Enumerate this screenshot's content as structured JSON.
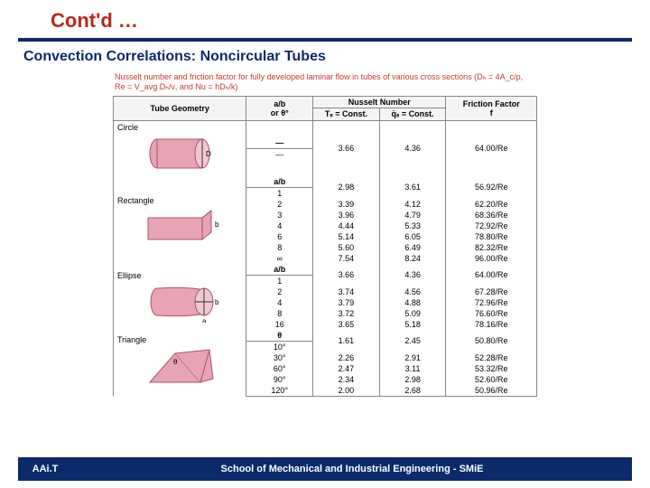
{
  "colors": {
    "title": "#b42a1e",
    "rule": "#0a2a6b",
    "subtitle": "#0a2a6b",
    "caption": "#c23a2e",
    "shape_fill": "#e8a4b4",
    "shape_stroke": "#a8536b",
    "footer_bg": "#0a2a6b"
  },
  "title": "Cont'd …",
  "subtitle": "Convection Correlations: Noncircular Tubes",
  "caption": "Nusselt number and friction factor for fully developed laminar flow in tubes of various cross sections (Dₕ = 4A_c/p, Re = V_avg Dₕ/ν, and Nu = hDₕ/k)",
  "headers": {
    "geom": "Tube Geometry",
    "ratio": "a/b\nor θ°",
    "nu_group": "Nusselt Number",
    "nu_ts": "Tₛ = Const.",
    "nu_qs": "q̇ₛ = Const.",
    "ff": "Friction Factor\nf"
  },
  "sections": [
    {
      "label": "Circle",
      "ratio_label": "—",
      "shape": "circle",
      "rows": [
        [
          "—",
          "3.66",
          "4.36",
          "64.00/Re"
        ]
      ]
    },
    {
      "label": "Rectangle",
      "ratio_label": "a/b",
      "shape": "rectangle",
      "rows": [
        [
          "1",
          "2.98",
          "3.61",
          "56.92/Re"
        ],
        [
          "2",
          "3.39",
          "4.12",
          "62.20/Re"
        ],
        [
          "3",
          "3.96",
          "4.79",
          "68.36/Re"
        ],
        [
          "4",
          "4.44",
          "5.33",
          "72.92/Re"
        ],
        [
          "6",
          "5.14",
          "6.05",
          "78.80/Re"
        ],
        [
          "8",
          "5.60",
          "6.49",
          "82.32/Re"
        ],
        [
          "∞",
          "7.54",
          "8.24",
          "96.00/Re"
        ]
      ]
    },
    {
      "label": "Ellipse",
      "ratio_label": "a/b",
      "shape": "ellipse",
      "rows": [
        [
          "1",
          "3.66",
          "4.36",
          "64.00/Re"
        ],
        [
          "2",
          "3.74",
          "4.56",
          "67.28/Re"
        ],
        [
          "4",
          "3.79",
          "4.88",
          "72.96/Re"
        ],
        [
          "8",
          "3.72",
          "5.09",
          "76.60/Re"
        ],
        [
          "16",
          "3.65",
          "5.18",
          "78.16/Re"
        ]
      ]
    },
    {
      "label": "Triangle",
      "ratio_label": "θ",
      "shape": "triangle",
      "rows": [
        [
          "10°",
          "1.61",
          "2.45",
          "50.80/Re"
        ],
        [
          "30°",
          "2.26",
          "2.91",
          "52.28/Re"
        ],
        [
          "60°",
          "2.47",
          "3.11",
          "53.32/Re"
        ],
        [
          "90°",
          "2.34",
          "2.98",
          "52.60/Re"
        ],
        [
          "120°",
          "2.00",
          "2.68",
          "50.96/Re"
        ]
      ]
    }
  ],
  "footer": {
    "left": "AAi.T",
    "right": "School of Mechanical and Industrial Engineering - SMiE"
  }
}
